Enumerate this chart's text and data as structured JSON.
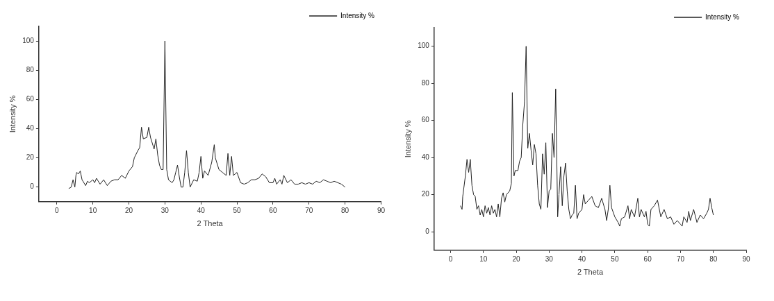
{
  "chart_data": [
    {
      "type": "line",
      "xlabel": "2 Theta",
      "ylabel": "Intensity %",
      "xlim": [
        -5,
        90
      ],
      "ylim": [
        -10,
        110
      ],
      "xticks": [
        0,
        10,
        20,
        30,
        40,
        50,
        60,
        70,
        80,
        90
      ],
      "yticks": [
        0,
        20,
        40,
        60,
        80,
        100
      ],
      "grid": false,
      "legend": "top right",
      "marker": "none",
      "line_style": "solid",
      "series": [
        {
          "name": "Intensity %",
          "color": "#222222",
          "x": [
            3.3,
            4,
            4.5,
            5,
            5.3,
            5.5,
            6,
            6.5,
            7,
            8,
            8.5,
            9,
            10,
            10.5,
            11,
            12,
            13,
            14,
            15,
            16,
            17,
            18,
            19,
            20,
            21,
            21.5,
            22.5,
            23,
            23.5,
            24,
            25,
            25.5,
            26,
            26.5,
            27,
            27.5,
            28,
            28.5,
            29,
            29.5,
            30,
            30.5,
            31,
            32,
            32.5,
            33,
            33.5,
            34,
            34.5,
            35,
            35.5,
            36,
            36.5,
            37,
            38,
            39,
            39.5,
            40,
            40.5,
            41,
            42,
            43,
            43.7,
            44,
            45,
            46,
            47,
            47.5,
            48,
            48.5,
            49,
            50,
            51,
            52,
            53,
            54,
            55,
            56,
            57,
            58,
            59,
            60,
            60.5,
            61,
            62,
            62.5,
            63,
            64,
            65,
            66,
            67,
            68,
            69,
            70,
            71,
            72,
            73,
            74,
            75,
            76,
            77,
            78,
            79,
            80
          ],
          "values": [
            -1,
            0,
            5,
            0,
            8,
            10,
            9,
            11,
            5,
            1,
            4,
            3,
            5,
            3,
            6,
            2,
            5,
            1,
            4,
            5,
            5,
            8,
            6,
            11,
            14,
            20,
            25,
            27,
            41,
            33,
            34,
            41,
            34,
            30,
            26,
            33,
            22,
            15,
            12,
            12,
            100,
            12,
            5,
            3,
            5,
            10,
            15,
            7,
            0,
            0,
            10,
            25,
            10,
            0,
            5,
            4,
            10,
            21,
            6,
            11,
            8,
            17,
            29,
            20,
            12,
            10,
            8,
            23,
            8,
            21,
            8,
            10,
            3,
            2,
            3,
            5,
            5,
            6,
            9,
            7,
            3,
            3,
            6,
            2,
            5,
            2,
            8,
            3,
            5,
            2,
            2,
            3,
            2,
            3,
            2,
            4,
            3,
            5,
            4,
            3,
            4,
            3,
            2,
            0
          ]
        }
      ]
    },
    {
      "type": "line",
      "xlabel": "2 Theta",
      "ylabel": "Intensity %",
      "xlim": [
        -5,
        90
      ],
      "ylim": [
        -10,
        110
      ],
      "xticks": [
        0,
        10,
        20,
        30,
        40,
        50,
        60,
        70,
        80,
        90
      ],
      "yticks": [
        0,
        20,
        40,
        60,
        80,
        100
      ],
      "grid": false,
      "legend": "top right",
      "marker": "none",
      "line_style": "solid",
      "series": [
        {
          "name": "Intensity %",
          "color": "#222222",
          "x": [
            3,
            3.5,
            3.7,
            4.5,
            5,
            5.5,
            6,
            6.5,
            7,
            7.5,
            8,
            8.5,
            9,
            9.5,
            10,
            10.5,
            11,
            11.5,
            12,
            12.5,
            13,
            13.5,
            14,
            14.5,
            15,
            15.5,
            16,
            16.5,
            17,
            18,
            18.5,
            18.8,
            19.3,
            19.7,
            20.5,
            21,
            21.5,
            22,
            22.5,
            23,
            23.5,
            24,
            24.5,
            25,
            25.5,
            26,
            26.5,
            27,
            27.5,
            28,
            28.5,
            29,
            29.5,
            30,
            30.5,
            31,
            31.5,
            32,
            32.6,
            33,
            33.5,
            34,
            34.5,
            35,
            35.5,
            36,
            36.5,
            37,
            37.5,
            38,
            38.5,
            39,
            40,
            40.5,
            41,
            42,
            43,
            44,
            45,
            46,
            47,
            47.5,
            48,
            48.5,
            49,
            50,
            51,
            51.5,
            52,
            53,
            54,
            54.5,
            55,
            56,
            57,
            57.5,
            58,
            59,
            59.5,
            60,
            60.5,
            61,
            62,
            63,
            64,
            65,
            66,
            67,
            68,
            69,
            70,
            70.5,
            71,
            72,
            72.5,
            73,
            74,
            75,
            76,
            77,
            78,
            78.5,
            79,
            79.5,
            80
          ],
          "values": [
            14,
            12,
            19,
            30,
            39,
            32,
            39,
            25,
            20,
            19,
            12,
            14,
            9,
            12,
            8,
            14,
            10,
            13,
            9,
            14,
            10,
            12,
            8,
            15,
            8,
            18,
            21,
            16,
            20,
            22,
            26,
            75,
            30,
            33,
            33,
            38,
            40,
            58,
            70,
            100,
            45,
            53,
            44,
            36,
            47,
            42,
            25,
            15,
            12,
            42,
            31,
            48,
            13,
            22,
            23,
            53,
            40,
            77,
            8,
            20,
            35,
            14,
            30,
            37,
            22,
            12,
            7,
            9,
            10,
            25,
            7,
            10,
            12,
            20,
            15,
            17,
            19,
            14,
            13,
            18,
            12,
            6,
            12,
            25,
            13,
            8,
            5,
            3,
            7,
            8,
            14,
            7,
            12,
            8,
            18,
            8,
            12,
            8,
            11,
            4,
            3,
            12,
            14,
            17,
            8,
            12,
            7,
            8,
            4,
            6,
            4,
            3,
            8,
            5,
            11,
            6,
            12,
            5,
            9,
            7,
            10,
            12,
            18,
            13,
            9
          ]
        }
      ]
    }
  ]
}
